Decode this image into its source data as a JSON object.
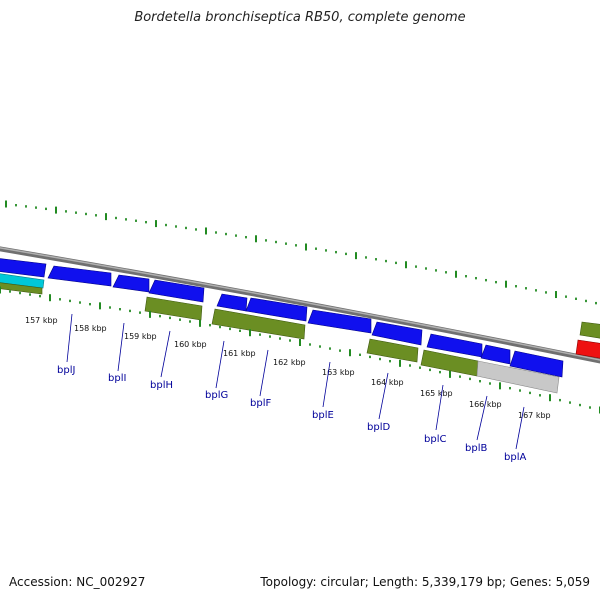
{
  "title": "Bordetella bronchiseptica RB50, complete genome",
  "footer": {
    "accession": "Accession: NC_002927",
    "stats": "Topology: circular; Length: 5,339,179 bp; Genes: 5,059"
  },
  "scale_labels": [
    "157 kbp",
    "158 kbp",
    "159 kbp",
    "160 kbp",
    "161 kbp",
    "162 kbp",
    "163 kbp",
    "164 kbp",
    "165 kbp",
    "166 kbp",
    "167 kbp"
  ],
  "gene_labels": [
    "bplJ",
    "bplI",
    "bplH",
    "bplG",
    "bplF",
    "bplE",
    "bplD",
    "bplC",
    "bplB",
    "bplA"
  ],
  "colors": {
    "cds": "#1010ee",
    "olive": "#6b8e23",
    "grey": "#c8c8c8",
    "cyan": "#00c8d8",
    "red": "#ee1111",
    "tick": "#228b22",
    "backbone": "#8a8a8a",
    "label": "#00009a"
  }
}
